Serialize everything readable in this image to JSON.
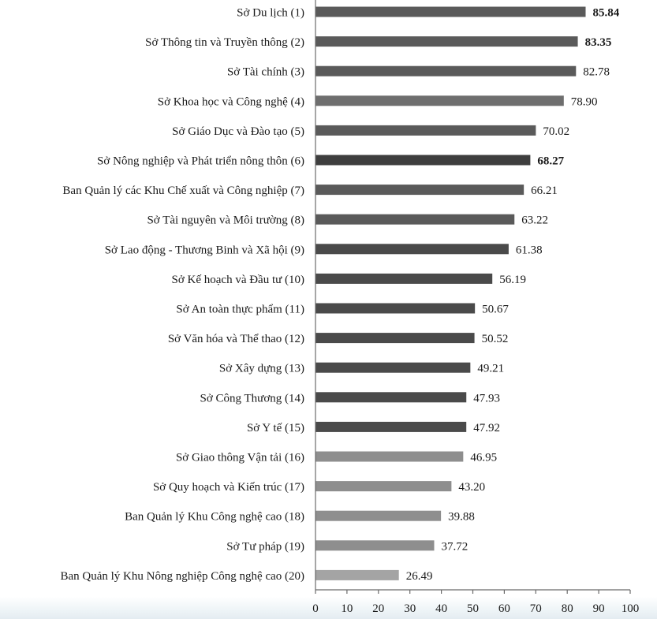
{
  "chart_data": {
    "type": "bar",
    "orientation": "horizontal",
    "title": "",
    "xlabel": "",
    "ylabel": "",
    "xlim": [
      0,
      100
    ],
    "x_ticks": [
      0,
      10,
      20,
      30,
      40,
      50,
      60,
      70,
      80,
      90,
      100
    ],
    "grid": false,
    "legend": "none",
    "categories": [
      "Sở Du lịch  (1)",
      "Sở Thông tin và Truyền thông (2)",
      "Sở Tài chính (3)",
      "Sở Khoa học và Công nghệ (4)",
      "Sở Giáo Dục và Đào tạo (5)",
      "Sở Nông nghiệp và Phát triển nông thôn (6)",
      "Ban Quản lý các Khu Chế xuất và Công nghiệp (7)",
      "Sở Tài nguyên và Môi trường (8)",
      "Sở Lao động - Thương Binh và Xã hội  (9)",
      "Sở Kế hoạch và Đầu tư (10)",
      "Sở An toàn thực phẩm (11)",
      "Sở Văn hóa và Thể thao (12)",
      "Sở Xây dựng (13)",
      "Sở Công Thương (14)",
      "Sở Y tế (15)",
      "Sở Giao thông Vận tải (16)",
      "Sở Quy hoạch và Kiến trúc (17)",
      "Ban Quản lý Khu Công nghệ cao (18)",
      "Sở Tư pháp (19)",
      "Ban Quản lý Khu Nông nghiệp Công nghệ cao (20)"
    ],
    "values": [
      85.84,
      83.35,
      82.78,
      78.9,
      70.02,
      68.27,
      66.21,
      63.22,
      61.38,
      56.19,
      50.67,
      50.52,
      49.21,
      47.93,
      47.92,
      46.95,
      43.2,
      39.88,
      37.72,
      26.49
    ],
    "value_labels": [
      "85.84",
      "83.35",
      "82.78",
      "78.90",
      "70.02",
      "68.27",
      "66.21",
      "63.22",
      "61.38",
      "56.19",
      "50.67",
      "50.52",
      "49.21",
      "47.93",
      "47.92",
      "46.95",
      "43.20",
      "39.88",
      "37.72",
      "26.49"
    ],
    "bold_value_labels": [
      0,
      1,
      5
    ],
    "bar_colors": [
      "#5a5a5a",
      "#5a5a5a",
      "#5a5a5a",
      "#6e6e6e",
      "#5a5a5a",
      "#3e3e3e",
      "#5a5a5a",
      "#5a5a5a",
      "#4a4a4a",
      "#4a4a4a",
      "#4a4a4a",
      "#4a4a4a",
      "#4a4a4a",
      "#4a4a4a",
      "#4a4a4a",
      "#8e8e8e",
      "#8e8e8e",
      "#8e8e8e",
      "#8e8e8e",
      "#a4a4a4"
    ],
    "label_color": "#1a1a1a",
    "axis_color": "#6a6a6a"
  }
}
